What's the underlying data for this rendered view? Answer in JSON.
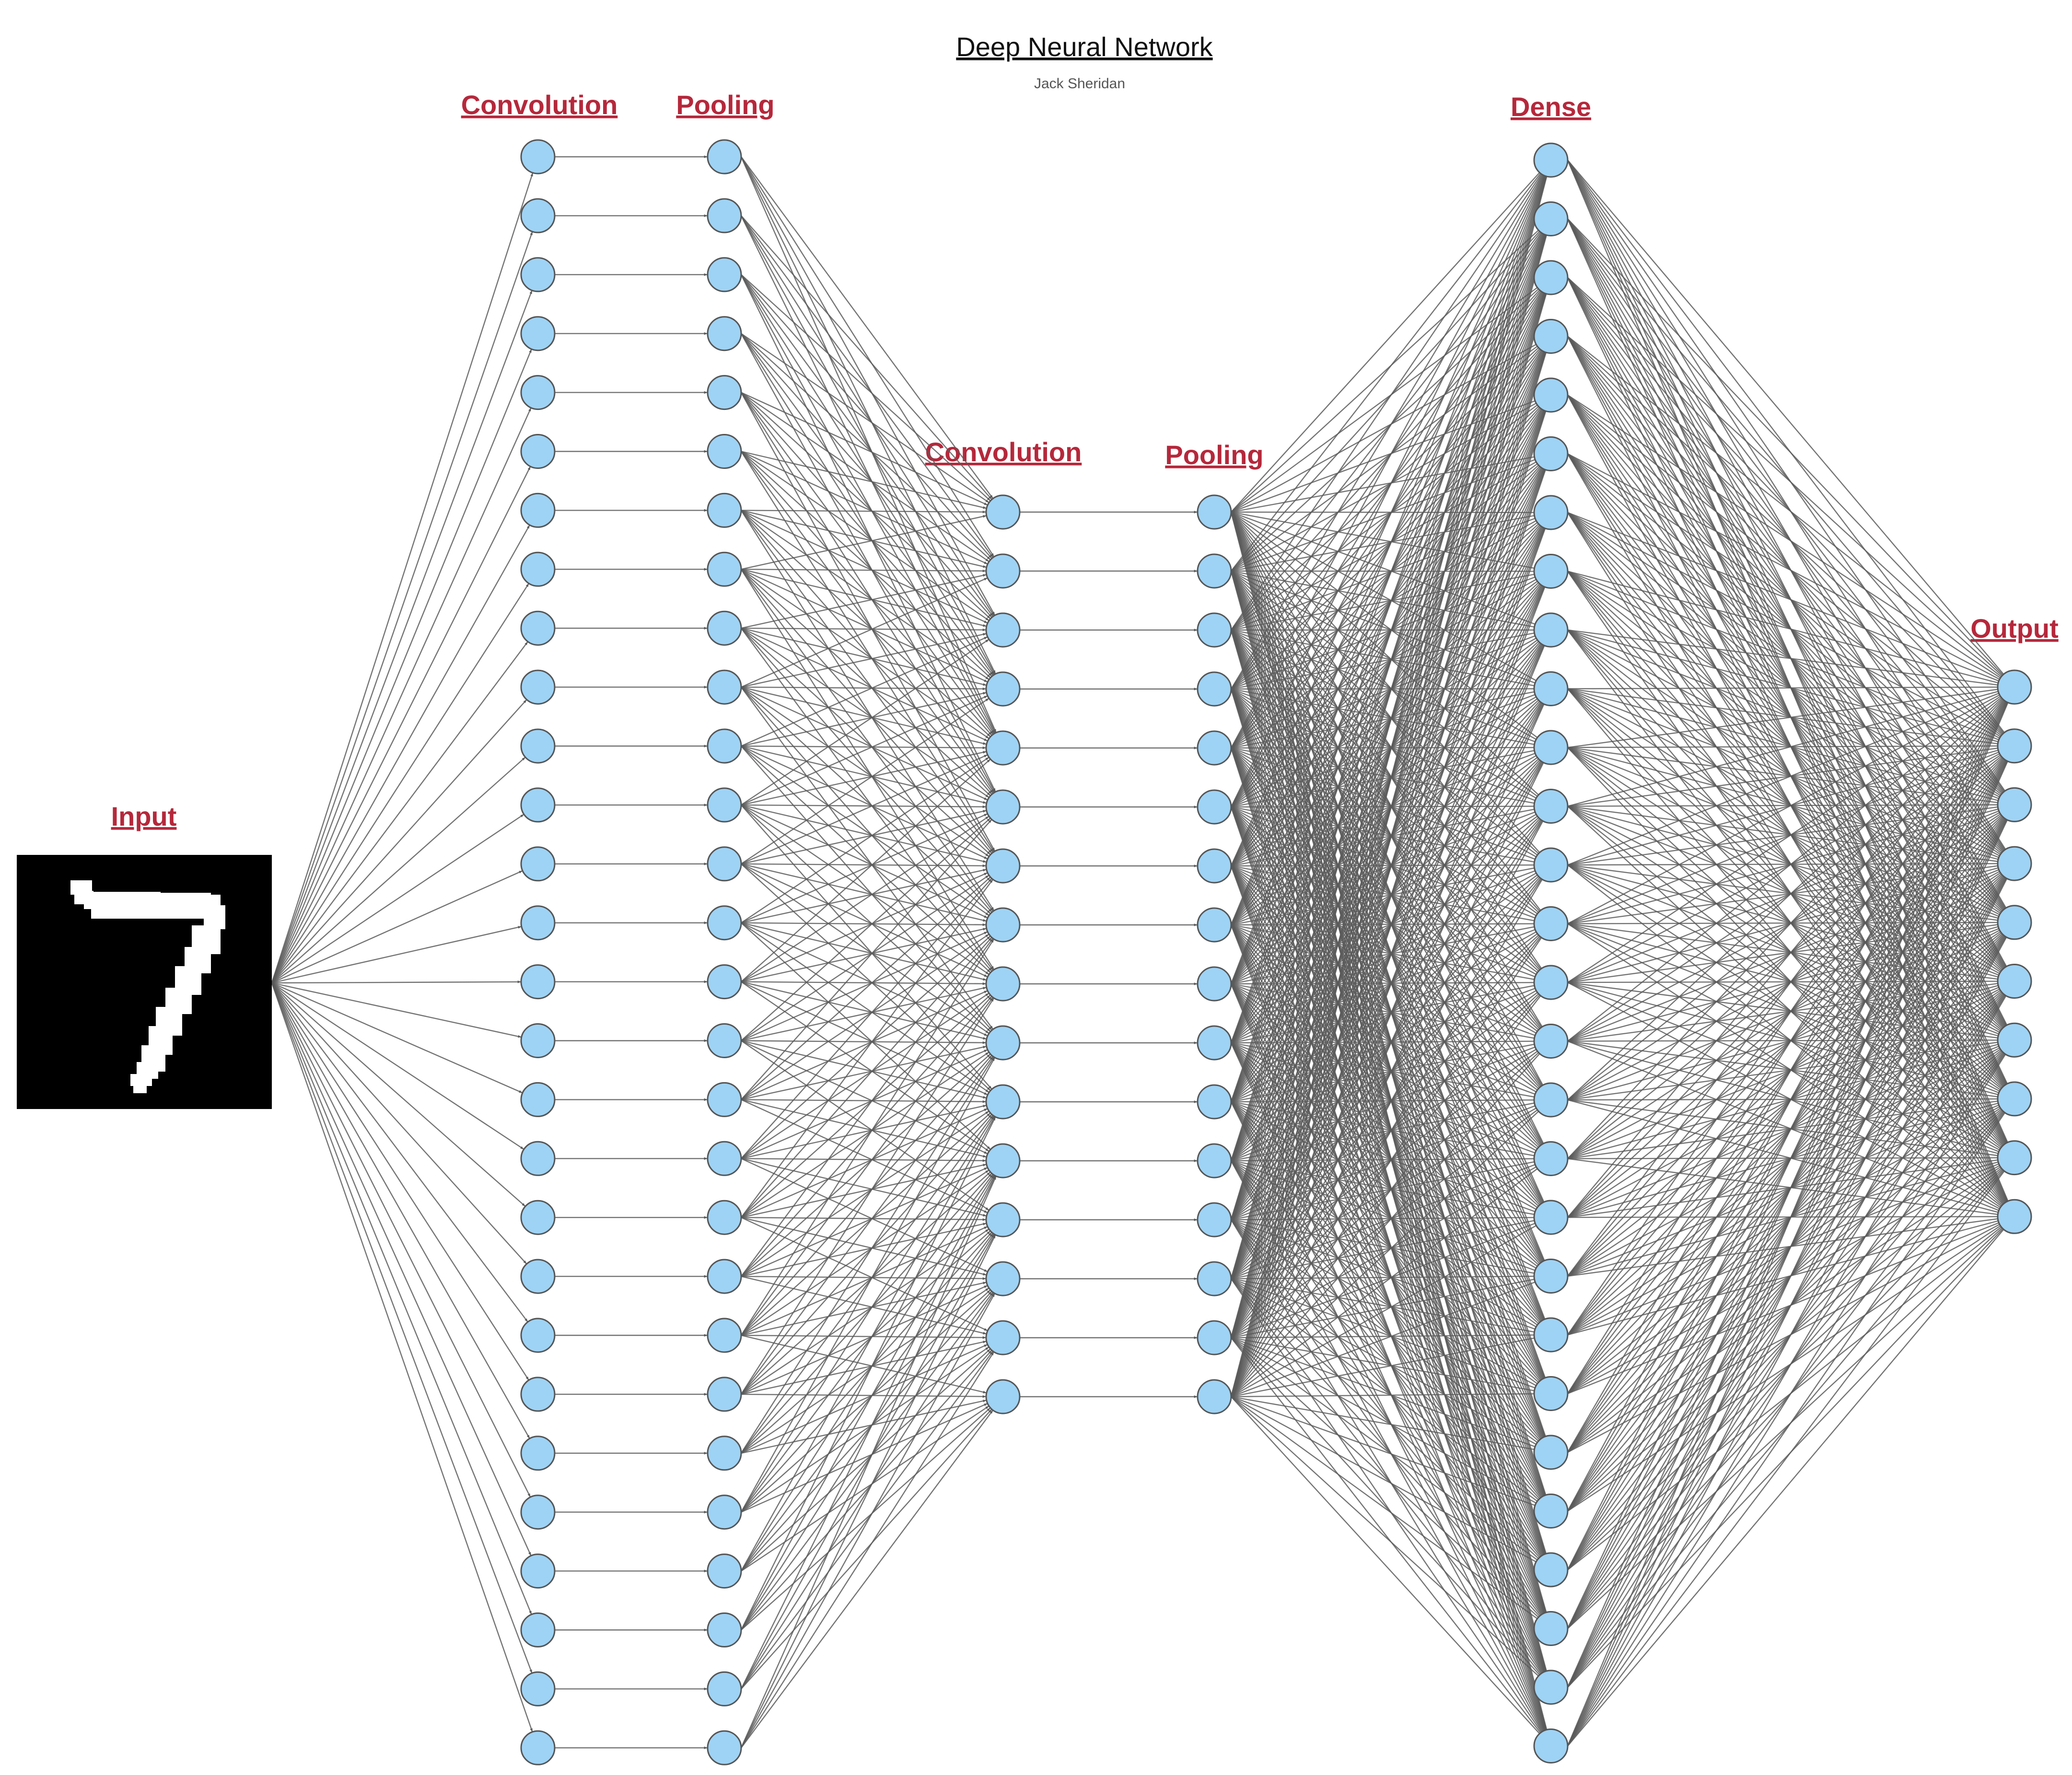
{
  "title": "Deep Neural Network",
  "author": "Jack Sheridan",
  "colors": {
    "label": "#b5283b",
    "neuron_fill": "#9ed3f5",
    "neuron_stroke": "#555555",
    "edge": "#5a5a5a",
    "input_bg": "#000000",
    "digit": "#ffffff"
  },
  "input_image": {
    "icon": "handwritten-digit-seven-icon"
  },
  "layers": [
    {
      "id": "input",
      "label": "Input",
      "neurons": 0
    },
    {
      "id": "conv1",
      "label": "Convolution",
      "neurons": 28
    },
    {
      "id": "pool1",
      "label": "Pooling",
      "neurons": 28
    },
    {
      "id": "conv2",
      "label": "Convolution",
      "neurons": 16
    },
    {
      "id": "pool2",
      "label": "Pooling",
      "neurons": 16
    },
    {
      "id": "dense",
      "label": "Dense",
      "neurons": 28
    },
    {
      "id": "output",
      "label": "Output",
      "neurons": 10
    }
  ],
  "connections": [
    {
      "from": "input",
      "to": "conv1",
      "type": "fan-out"
    },
    {
      "from": "conv1",
      "to": "pool1",
      "type": "one-to-one"
    },
    {
      "from": "pool1",
      "to": "conv2",
      "type": "local"
    },
    {
      "from": "conv2",
      "to": "pool2",
      "type": "one-to-one"
    },
    {
      "from": "pool2",
      "to": "dense",
      "type": "full"
    },
    {
      "from": "dense",
      "to": "output",
      "type": "full"
    }
  ]
}
